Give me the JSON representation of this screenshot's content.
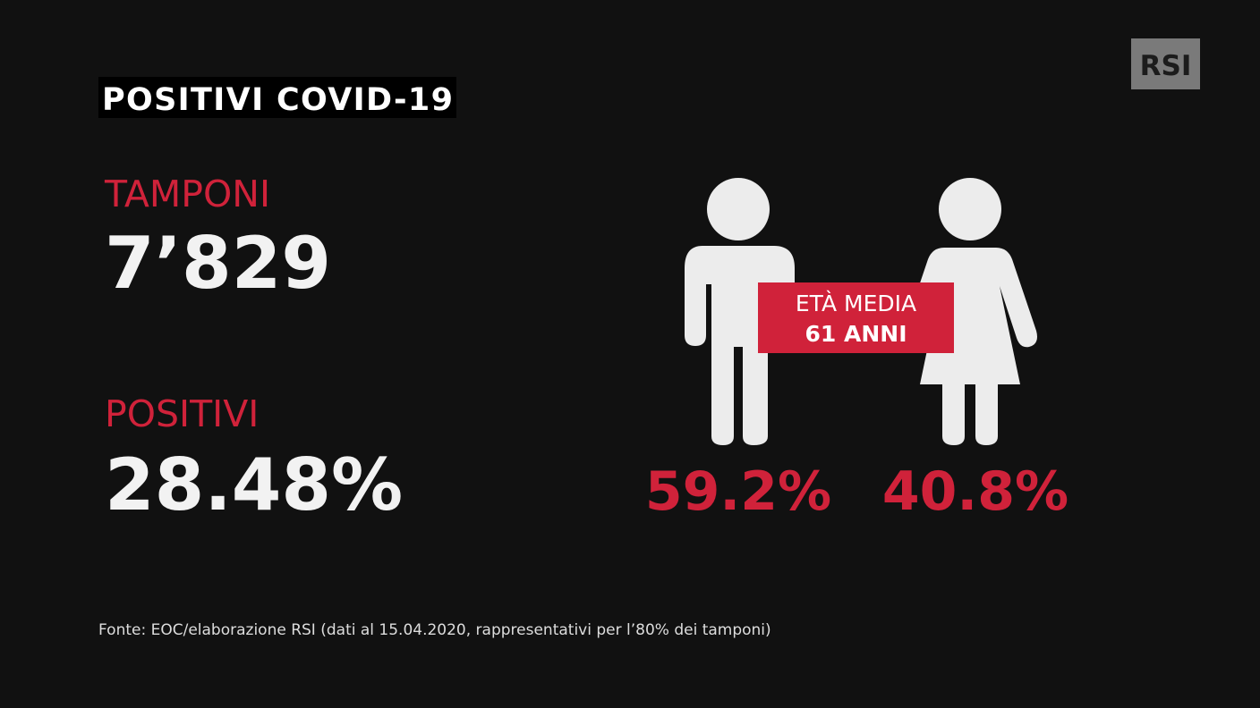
{
  "logo": "RSI",
  "title": "POSITIVI COVID-19",
  "stats": [
    {
      "label": "TAMPONI",
      "value": "7’829"
    },
    {
      "label": "POSITIVI",
      "value": "28.48%"
    }
  ],
  "age_box": {
    "line1": "ETÀ MEDIA",
    "line2": "61 ANNI"
  },
  "gender": {
    "male": "59.2%",
    "female": "40.8%"
  },
  "source": "Fonte: EOC/elaborazione RSI (dati al 15.04.2020, rappresentativi per l’80% dei tamponi)"
}
